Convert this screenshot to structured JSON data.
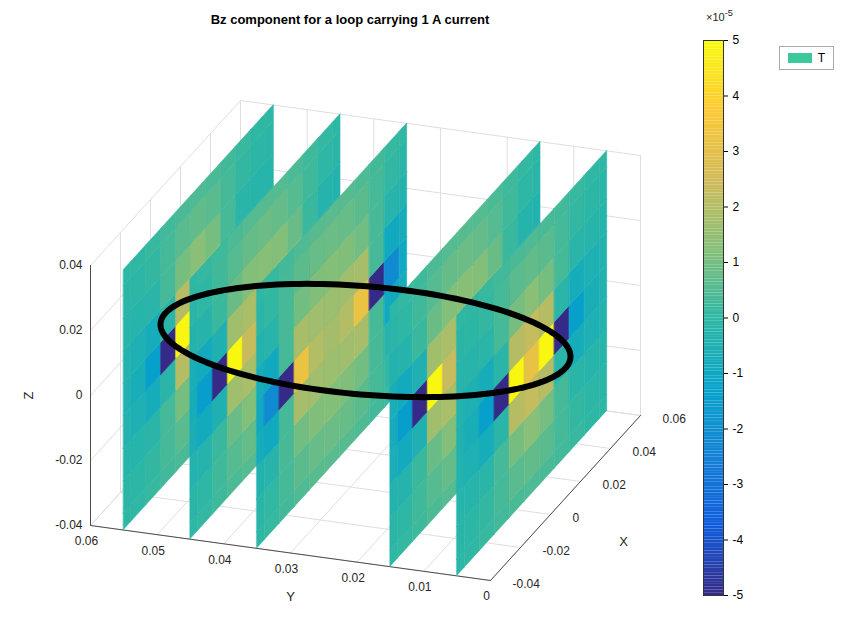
{
  "chart_data": {
    "type": "slice",
    "title": "Bz component for a loop carrying 1 A current",
    "xlabel": "X",
    "ylabel": "Y",
    "zlabel": "Z",
    "xlim": [
      -0.04,
      0.06
    ],
    "xticks": [
      -0.04,
      -0.02,
      0,
      0.02,
      0.04,
      0.06
    ],
    "ylim": [
      0,
      0.06
    ],
    "yticks": [
      0,
      0.01,
      0.02,
      0.03,
      0.04,
      0.05,
      0.06
    ],
    "zlim": [
      -0.04,
      0.04
    ],
    "zticks": [
      -0.04,
      -0.02,
      0,
      0.02,
      0.04
    ],
    "grid": true,
    "legend": "top-right",
    "series": [
      {
        "name": "T",
        "color": "#3bc99c"
      }
    ],
    "colorbar": {
      "lim": [
        -5,
        5
      ],
      "ticks": [
        -5,
        -4,
        -3,
        -2,
        -1,
        0,
        1,
        2,
        3,
        4,
        5
      ],
      "multiplier": "×10",
      "exponent": -5
    },
    "loop": {
      "center": [
        0.01,
        0.03,
        0
      ],
      "radius": 0.03
    },
    "grid_x": [
      -0.04,
      -0.03,
      -0.02,
      -0.01,
      0,
      0.01,
      0.02,
      0.03,
      0.04,
      0.05,
      0.06
    ],
    "grid_z": [
      -0.04,
      -0.03,
      -0.02,
      -0.01,
      0,
      0.01,
      0.02,
      0.03,
      0.04
    ],
    "slices": [
      {
        "y": 0.055,
        "values": [
          [
            -0.03,
            0.02,
            0.13,
            0.27,
            0.4,
            0.46,
            0.4,
            0.27,
            0.13,
            0.02,
            -0.03
          ],
          [
            -0.11,
            -0.06,
            0.07,
            0.33,
            0.61,
            0.73,
            0.61,
            0.33,
            0.07,
            -0.06,
            -0.11
          ],
          [
            -0.21,
            -0.23,
            -0.13,
            0.33,
            1.01,
            1.28,
            1.01,
            0.33,
            -0.13,
            -0.23,
            -0.21
          ],
          [
            -0.33,
            -0.49,
            -0.71,
            -0.13,
            2.05,
            2.3,
            2.05,
            -0.13,
            -0.71,
            -0.49,
            -0.33
          ],
          [
            -0.39,
            -0.65,
            -1.38,
            -5,
            4.9,
            3.13,
            4.9,
            -5,
            -1.38,
            -0.65,
            -0.39
          ],
          [
            -0.33,
            -0.49,
            -0.71,
            -0.13,
            2.05,
            2.3,
            2.05,
            -0.13,
            -0.71,
            -0.49,
            -0.33
          ],
          [
            -0.21,
            -0.23,
            -0.13,
            0.33,
            1.01,
            1.28,
            1.01,
            0.33,
            -0.13,
            -0.23,
            -0.21
          ],
          [
            -0.11,
            -0.06,
            0.07,
            0.33,
            0.61,
            0.73,
            0.61,
            0.33,
            0.07,
            -0.06,
            -0.11
          ],
          [
            -0.03,
            0.02,
            0.13,
            0.27,
            0.4,
            0.46,
            0.4,
            0.27,
            0.13,
            0.02,
            -0.03
          ]
        ]
      },
      {
        "y": 0.045,
        "values": [
          [
            -0.02,
            0.09,
            0.24,
            0.42,
            0.55,
            0.59,
            0.55,
            0.42,
            0.24,
            0.09,
            -0.02
          ],
          [
            -0.13,
            -0.01,
            0.25,
            0.56,
            0.79,
            0.86,
            0.79,
            0.56,
            0.25,
            -0.01,
            -0.13
          ],
          [
            -0.32,
            -0.25,
            0.16,
            0.83,
            1.19,
            1.26,
            1.19,
            0.83,
            0.16,
            -0.25,
            -0.32
          ],
          [
            -0.59,
            -0.85,
            -0.45,
            1.69,
            1.84,
            1.74,
            1.84,
            1.69,
            -0.45,
            -0.85,
            -0.59
          ],
          [
            -0.74,
            -1.46,
            -5,
            4.9,
            2.35,
            2,
            2.35,
            4.9,
            -5,
            -1.46,
            -0.74
          ],
          [
            -0.59,
            -0.85,
            -0.45,
            1.69,
            1.84,
            1.74,
            1.84,
            1.69,
            -0.45,
            -0.85,
            -0.59
          ],
          [
            -0.32,
            -0.25,
            0.16,
            0.83,
            1.19,
            1.26,
            1.19,
            0.83,
            0.16,
            -0.25,
            -0.32
          ],
          [
            -0.13,
            -0.01,
            0.25,
            0.56,
            0.79,
            0.86,
            0.79,
            0.56,
            0.25,
            -0.01,
            -0.13
          ],
          [
            -0.02,
            0.09,
            0.24,
            0.42,
            0.55,
            0.59,
            0.55,
            0.42,
            0.24,
            0.09,
            -0.02
          ]
        ]
      },
      {
        "y": 0.035,
        "values": [
          [
            0,
            0.12,
            0.29,
            0.47,
            0.58,
            0.62,
            0.58,
            0.47,
            0.29,
            0.12,
            0
          ],
          [
            -0.12,
            0.05,
            0.34,
            0.64,
            0.81,
            0.87,
            0.81,
            0.64,
            0.34,
            0.05,
            -0.12
          ],
          [
            -0.34,
            -0.19,
            0.37,
            0.96,
            1.17,
            1.21,
            1.17,
            0.96,
            0.37,
            -0.19,
            -0.34
          ],
          [
            -0.71,
            -0.93,
            0.32,
            1.8,
            1.67,
            1.58,
            1.67,
            1.8,
            0.32,
            -0.93,
            -0.71
          ],
          [
            -0.95,
            -2.13,
            -5,
            3.23,
            1.98,
            1.76,
            1.98,
            3.23,
            -5,
            -2.13,
            -0.95
          ],
          [
            -0.71,
            -0.93,
            0.32,
            1.8,
            1.67,
            1.58,
            1.67,
            1.8,
            0.32,
            -0.93,
            -0.71
          ],
          [
            -0.34,
            -0.19,
            0.37,
            0.96,
            1.17,
            1.21,
            1.17,
            0.96,
            0.37,
            -0.19,
            -0.34
          ],
          [
            -0.12,
            0.05,
            0.34,
            0.64,
            0.81,
            0.87,
            0.81,
            0.64,
            0.34,
            0.05,
            -0.12
          ],
          [
            0,
            0.12,
            0.29,
            0.47,
            0.58,
            0.62,
            0.58,
            0.47,
            0.29,
            0.12,
            0
          ]
        ]
      },
      {
        "y": 0.015,
        "values": [
          [
            -0.02,
            0.09,
            0.24,
            0.42,
            0.55,
            0.59,
            0.55,
            0.42,
            0.24,
            0.09,
            -0.02
          ],
          [
            -0.13,
            -0.01,
            0.25,
            0.56,
            0.79,
            0.86,
            0.79,
            0.56,
            0.25,
            -0.01,
            -0.13
          ],
          [
            -0.32,
            -0.25,
            0.16,
            0.83,
            1.19,
            1.26,
            1.19,
            0.83,
            0.16,
            -0.25,
            -0.32
          ],
          [
            -0.59,
            -0.85,
            -0.45,
            1.69,
            1.84,
            1.74,
            1.84,
            1.69,
            -0.45,
            -0.85,
            -0.59
          ],
          [
            -0.74,
            -1.46,
            -5,
            4.9,
            2.35,
            2,
            2.35,
            4.9,
            -5,
            -1.46,
            -0.74
          ],
          [
            -0.59,
            -0.85,
            -0.45,
            1.69,
            1.84,
            1.74,
            1.84,
            1.69,
            -0.45,
            -0.85,
            -0.59
          ],
          [
            -0.32,
            -0.25,
            0.16,
            0.83,
            1.19,
            1.26,
            1.19,
            0.83,
            0.16,
            -0.25,
            -0.32
          ],
          [
            -0.13,
            -0.01,
            0.25,
            0.56,
            0.79,
            0.86,
            0.79,
            0.56,
            0.25,
            -0.01,
            -0.13
          ],
          [
            -0.02,
            0.09,
            0.24,
            0.42,
            0.55,
            0.59,
            0.55,
            0.42,
            0.24,
            0.09,
            -0.02
          ]
        ]
      },
      {
        "y": 0.005,
        "values": [
          [
            -0.03,
            0.02,
            0.13,
            0.27,
            0.4,
            0.46,
            0.4,
            0.27,
            0.13,
            0.02,
            -0.03
          ],
          [
            -0.11,
            -0.06,
            0.07,
            0.33,
            0.61,
            0.73,
            0.61,
            0.33,
            0.07,
            -0.06,
            -0.11
          ],
          [
            -0.21,
            -0.23,
            -0.13,
            0.33,
            1.01,
            1.28,
            1.01,
            0.33,
            -0.13,
            -0.23,
            -0.21
          ],
          [
            -0.33,
            -0.49,
            -0.71,
            -0.13,
            2.05,
            2.3,
            2.05,
            -0.13,
            -0.71,
            -0.49,
            -0.33
          ],
          [
            -0.39,
            -0.65,
            -1.38,
            -5,
            4.9,
            3.13,
            4.9,
            -5,
            -1.38,
            -0.65,
            -0.39
          ],
          [
            -0.33,
            -0.49,
            -0.71,
            -0.13,
            2.05,
            2.3,
            2.05,
            -0.13,
            -0.71,
            -0.49,
            -0.33
          ],
          [
            -0.21,
            -0.23,
            -0.13,
            0.33,
            1.01,
            1.28,
            1.01,
            0.33,
            -0.13,
            -0.23,
            -0.21
          ],
          [
            -0.11,
            -0.06,
            0.07,
            0.33,
            0.61,
            0.73,
            0.61,
            0.33,
            0.07,
            -0.06,
            -0.11
          ],
          [
            -0.03,
            0.02,
            0.13,
            0.27,
            0.4,
            0.46,
            0.4,
            0.27,
            0.13,
            0.02,
            -0.03
          ]
        ]
      }
    ]
  }
}
